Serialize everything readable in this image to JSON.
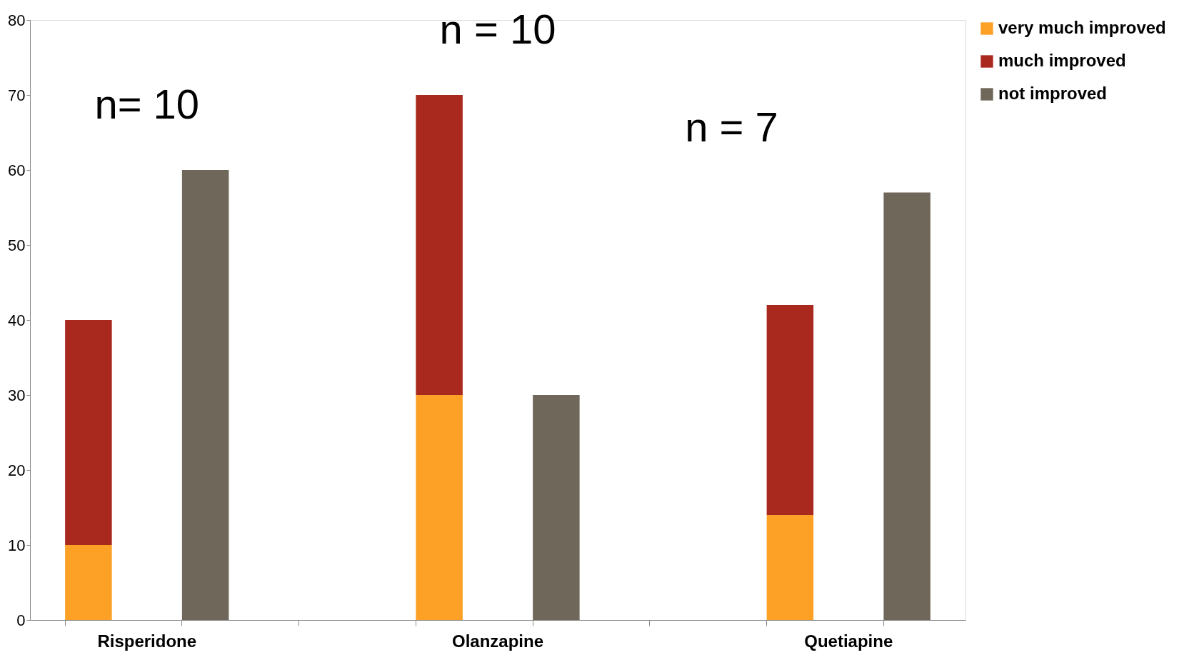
{
  "chart_data": {
    "type": "bar",
    "stacked": true,
    "categories": [
      "Risperidone",
      null,
      null,
      "Olanzapine",
      null,
      null,
      "Quetiapine",
      null
    ],
    "series": [
      {
        "name": "very much improved",
        "color": "#fca026",
        "values": [
          10,
          0,
          null,
          30,
          0,
          null,
          14,
          0
        ]
      },
      {
        "name": "much improved",
        "color": "#a9291e",
        "values": [
          30,
          0,
          null,
          40,
          0,
          null,
          28,
          0
        ]
      },
      {
        "name": "not improved",
        "color": "#6e675a",
        "values": [
          0,
          60,
          null,
          0,
          30,
          null,
          0,
          57
        ]
      }
    ],
    "ylim": [
      0,
      80
    ],
    "yticks": [
      0,
      10,
      20,
      30,
      40,
      50,
      60,
      70,
      80
    ],
    "grid": false,
    "legend": "right",
    "annotations": [
      "n= 10",
      "n = 10",
      "n = 7"
    ]
  }
}
